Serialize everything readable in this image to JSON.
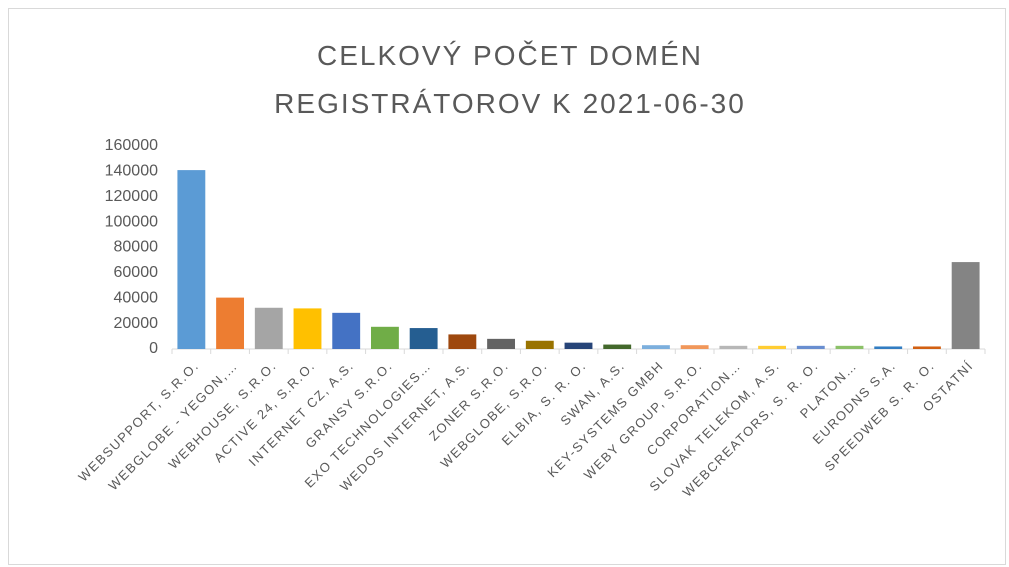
{
  "chart_data": {
    "type": "bar",
    "title": "CELKOVÝ POČET DOMÉN REGISTRÁTOROV K 2021-06-30",
    "categories": [
      "WEBSUPPORT, S.R.O.",
      "WEBGLOBE - YEGON,…",
      "WEBHOUSE, S.R.O.",
      "ACTIVE 24, S.R.O.",
      "INTERNET CZ, A.S.",
      "GRANSY S.R.O.",
      "EXO TECHNOLOGIES…",
      "WEDOS INTERNET, A.S.",
      "ZONER S.R.O.",
      "WEBGLOBE, S.R.O.",
      "ELBIA, S. R. O.",
      "SWAN, A.S.",
      "KEY-SYSTEMS GMBH",
      "WEBY GROUP, S.R.O.",
      "CORPORATION…",
      "SLOVAK TELEKOM, A.S.",
      "WEBCREATORS, S. R. O.",
      "PLATON…",
      "EURODNS S.A.",
      "SPEEDWEB S. R. O.",
      "OSTATNÍ"
    ],
    "values": [
      141000,
      40500,
      32500,
      32000,
      28500,
      17500,
      16500,
      11500,
      8000,
      6500,
      5000,
      3500,
      3000,
      3000,
      2500,
      2500,
      2500,
      2500,
      2000,
      2000,
      68500
    ],
    "colors": [
      "#5b9bd5",
      "#ed7d31",
      "#a5a5a5",
      "#ffc000",
      "#4472c4",
      "#70ad47",
      "#255e91",
      "#9e480e",
      "#636363",
      "#997300",
      "#264478",
      "#43682b",
      "#7cafdd",
      "#f1975a",
      "#b7b7b7",
      "#ffcd33",
      "#698ed0",
      "#8cc168",
      "#327dc2",
      "#d26012",
      "#848484"
    ],
    "ylim": [
      0,
      160000
    ],
    "yticks": [
      0,
      20000,
      40000,
      60000,
      80000,
      100000,
      120000,
      140000,
      160000
    ],
    "grid": false
  }
}
